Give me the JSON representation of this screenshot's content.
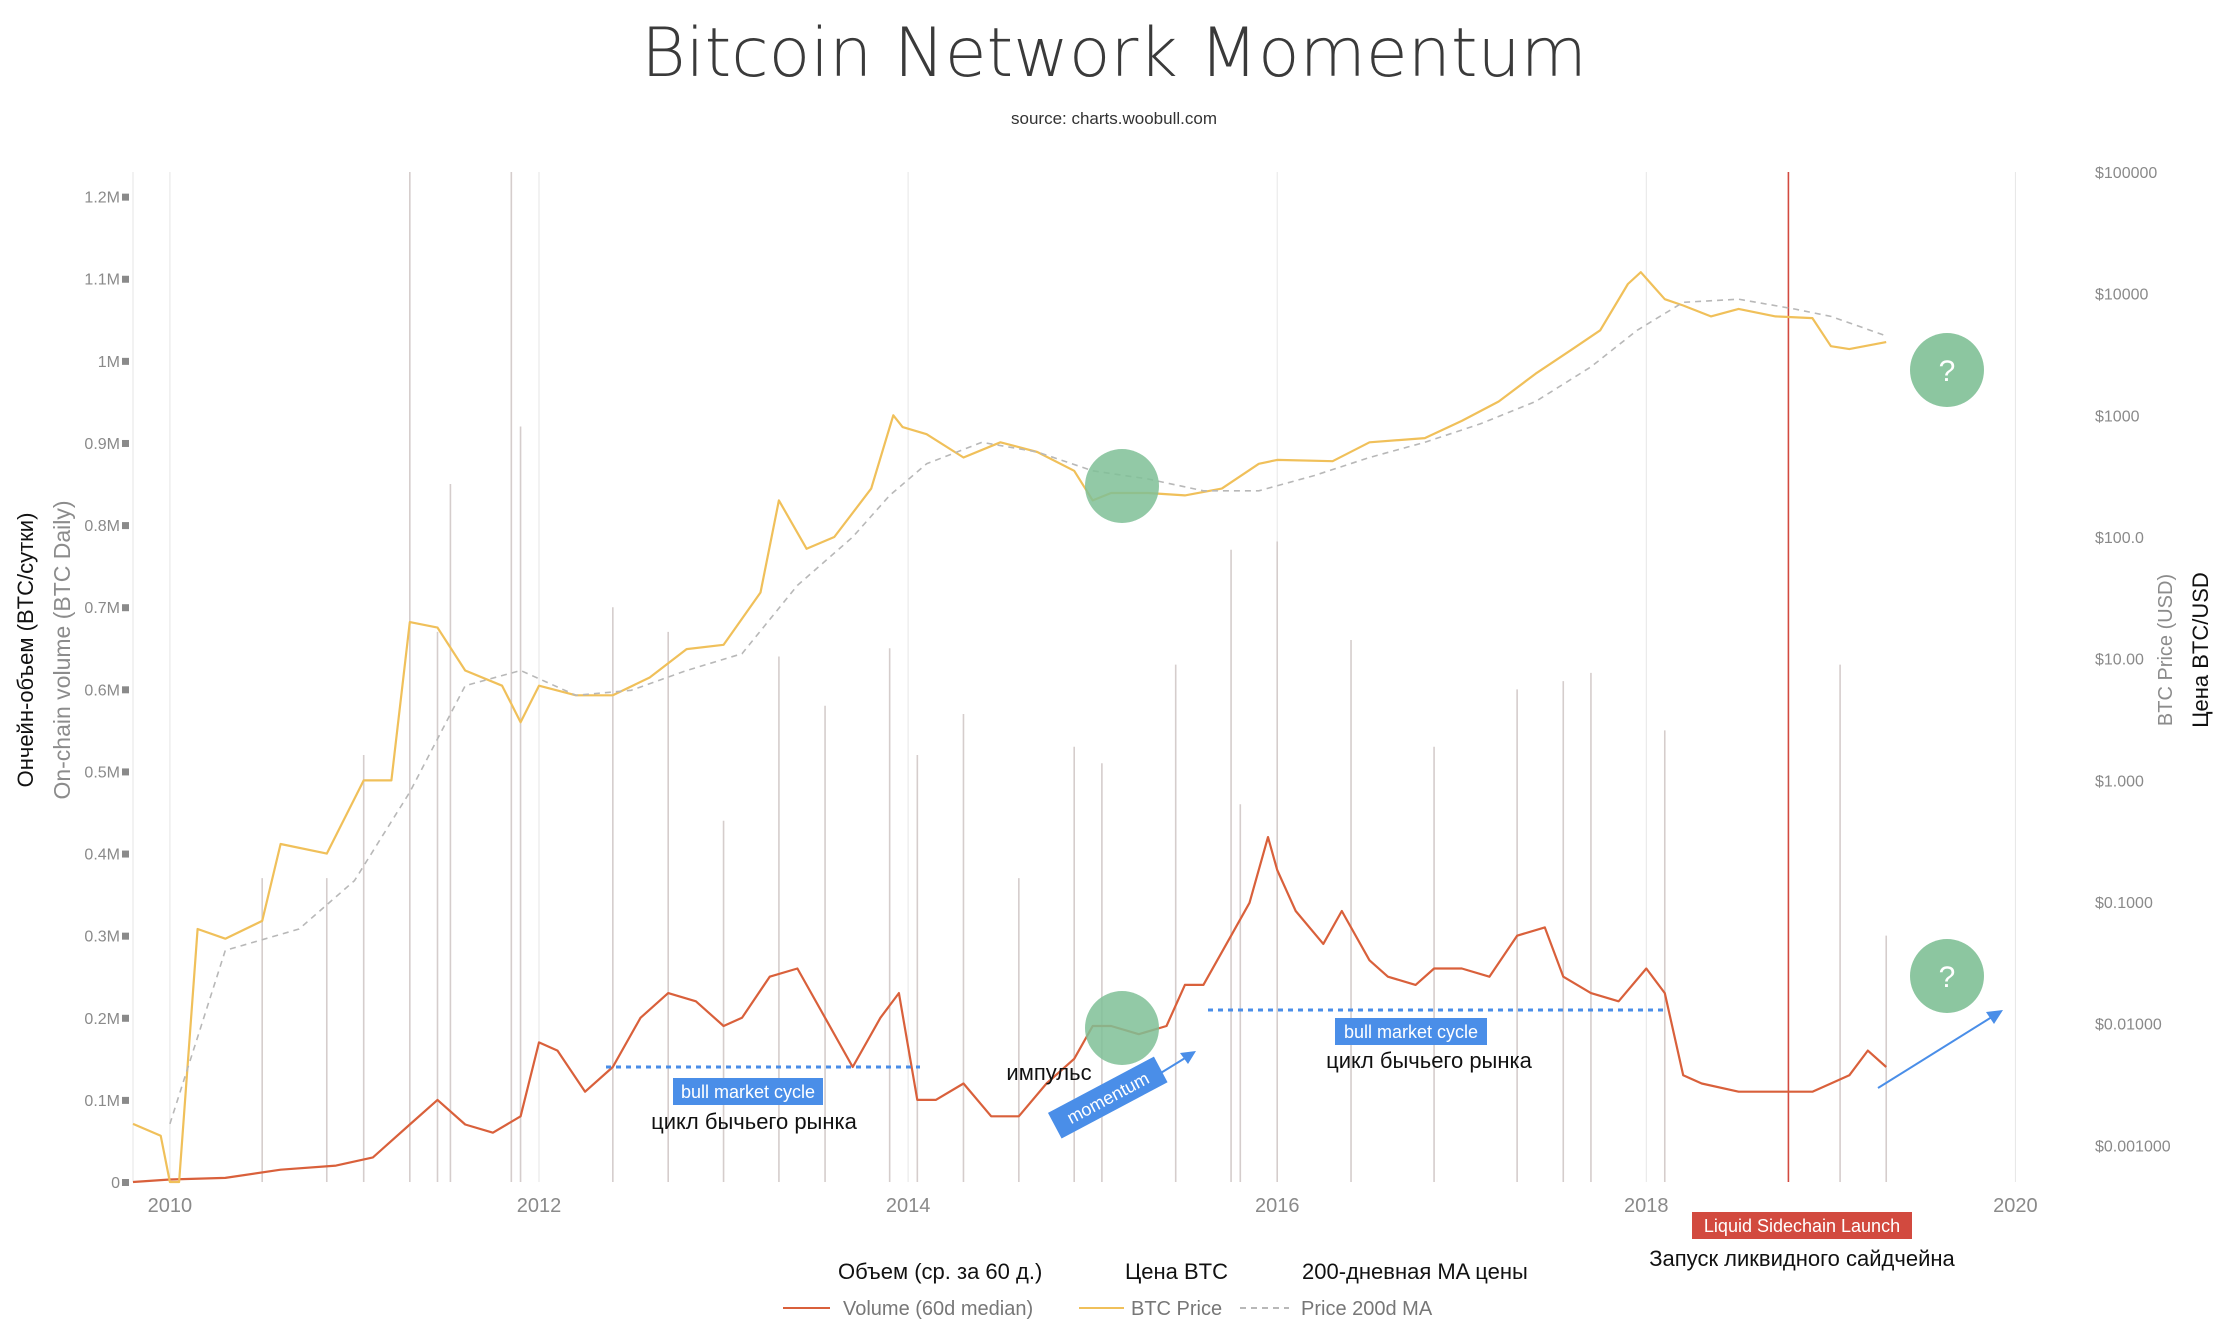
{
  "chart_data": {
    "type": "line",
    "title": "Bitcoin Network Momentum",
    "subtitle": "source: charts.woobull.com",
    "y_left": {
      "title_ru": "Ончейн-объем (BTC/сутки)",
      "title_en": "On-chain volume (BTC Daily)",
      "ticks": [
        "1.2M",
        "1.1M",
        "1M",
        "0.9M",
        "0.8M",
        "0.7M",
        "0.6M",
        "0.5M",
        "0.4M",
        "0.3M",
        "0.2M",
        "0.1M",
        "0"
      ],
      "range": [
        0,
        1.23
      ]
    },
    "y_right": {
      "title_en": "BTC Price (USD)",
      "title_ru": "Цена BTC/USD",
      "ticks": [
        "$100000",
        "$10000",
        "$1000",
        "$100.0",
        "$10.00",
        "$1.000",
        "$0.1000",
        "$0.01000",
        "$0.001000"
      ],
      "scale": "log",
      "range": [
        0.0005,
        100000
      ]
    },
    "x_axis": {
      "ticks": [
        "2010",
        "2012",
        "2014",
        "2016",
        "2018",
        "2020"
      ],
      "range": [
        2009.8,
        2020.35
      ]
    },
    "series": [
      {
        "name": "Volume (60d median)",
        "color": "#d9603b",
        "x": [
          2009.8,
          2010.0,
          2010.3,
          2010.6,
          2010.9,
          2011.1,
          2011.3,
          2011.45,
          2011.6,
          2011.75,
          2011.9,
          2012.0,
          2012.1,
          2012.25,
          2012.4,
          2012.55,
          2012.7,
          2012.85,
          2013.0,
          2013.1,
          2013.25,
          2013.4,
          2013.55,
          2013.7,
          2013.85,
          2013.95,
          2014.05,
          2014.15,
          2014.3,
          2014.45,
          2014.6,
          2014.75,
          2014.9,
          2015.0,
          2015.1,
          2015.25,
          2015.4,
          2015.5,
          2015.6,
          2015.75,
          2015.85,
          2015.95,
          2016.0,
          2016.1,
          2016.25,
          2016.35,
          2016.5,
          2016.6,
          2016.75,
          2016.85,
          2017.0,
          2017.15,
          2017.3,
          2017.45,
          2017.55,
          2017.7,
          2017.85,
          2018.0,
          2018.1,
          2018.2,
          2018.3,
          2018.5,
          2018.7,
          2018.8,
          2018.9,
          2019.0,
          2019.1,
          2019.2,
          2019.3
        ],
        "values": [
          0.0,
          0.003,
          0.005,
          0.015,
          0.02,
          0.03,
          0.07,
          0.1,
          0.07,
          0.06,
          0.08,
          0.17,
          0.16,
          0.11,
          0.14,
          0.2,
          0.23,
          0.22,
          0.19,
          0.2,
          0.25,
          0.26,
          0.2,
          0.14,
          0.2,
          0.23,
          0.1,
          0.1,
          0.12,
          0.08,
          0.08,
          0.12,
          0.15,
          0.19,
          0.19,
          0.18,
          0.19,
          0.24,
          0.24,
          0.3,
          0.34,
          0.42,
          0.38,
          0.33,
          0.29,
          0.33,
          0.27,
          0.25,
          0.24,
          0.26,
          0.26,
          0.25,
          0.3,
          0.31,
          0.25,
          0.23,
          0.22,
          0.26,
          0.23,
          0.13,
          0.12,
          0.11,
          0.11,
          0.11,
          0.11,
          0.12,
          0.13,
          0.16,
          0.14
        ]
      },
      {
        "name": "BTC Price",
        "color": "#f0c05a",
        "x": [
          2009.8,
          2009.95,
          2010.0,
          2010.05,
          2010.15,
          2010.3,
          2010.5,
          2010.6,
          2010.85,
          2011.05,
          2011.2,
          2011.3,
          2011.45,
          2011.6,
          2011.8,
          2011.9,
          2012.0,
          2012.2,
          2012.4,
          2012.6,
          2012.8,
          2013.0,
          2013.2,
          2013.3,
          2013.45,
          2013.6,
          2013.8,
          2013.92,
          2013.97,
          2014.1,
          2014.3,
          2014.5,
          2014.7,
          2014.9,
          2015.0,
          2015.1,
          2015.3,
          2015.5,
          2015.7,
          2015.9,
          2016.0,
          2016.3,
          2016.5,
          2016.8,
          2017.0,
          2017.2,
          2017.4,
          2017.6,
          2017.75,
          2017.9,
          2017.97,
          2018.1,
          2018.2,
          2018.35,
          2018.5,
          2018.7,
          2018.9,
          2019.0,
          2019.1,
          2019.3
        ],
        "values": [
          0.0015,
          0.0012,
          0.0005,
          0.0005,
          0.06,
          0.05,
          0.07,
          0.3,
          0.25,
          1.0,
          1.0,
          20,
          18,
          8.0,
          6.0,
          3.0,
          6.0,
          5.0,
          5.0,
          7.0,
          12,
          13,
          35,
          200,
          80,
          100,
          250,
          1000,
          800,
          700,
          450,
          600,
          500,
          350,
          200,
          230,
          230,
          220,
          250,
          400,
          430,
          420,
          600,
          650,
          900,
          1300,
          2200,
          3500,
          5000,
          12000,
          15000,
          9000,
          8000,
          6500,
          7500,
          6500,
          6300,
          3700,
          3500,
          4000
        ]
      },
      {
        "name": "Price 200d MA",
        "color": "#b8b8b8",
        "x": [
          2010.0,
          2010.3,
          2010.7,
          2011.0,
          2011.3,
          2011.6,
          2011.9,
          2012.2,
          2012.5,
          2012.8,
          2013.1,
          2013.4,
          2013.7,
          2013.9,
          2014.1,
          2014.4,
          2014.7,
          2015.0,
          2015.3,
          2015.6,
          2015.9,
          2016.2,
          2016.5,
          2016.8,
          2017.1,
          2017.4,
          2017.7,
          2017.95,
          2018.2,
          2018.5,
          2018.8,
          2019.0,
          2019.3
        ],
        "values": [
          0.0015,
          0.04,
          0.06,
          0.15,
          0.8,
          6.0,
          8.0,
          5.0,
          5.5,
          8.0,
          11,
          40,
          100,
          220,
          400,
          600,
          500,
          350,
          300,
          240,
          240,
          320,
          450,
          600,
          850,
          1300,
          2500,
          5000,
          8500,
          9000,
          7500,
          6500,
          4500
        ]
      }
    ],
    "volume_spikes": {
      "color": "#d5cdcc",
      "x": [
        2010.5,
        2010.85,
        2011.05,
        2011.3,
        2011.45,
        2011.52,
        2011.85,
        2011.9,
        2012.4,
        2012.7,
        2013.0,
        2013.3,
        2013.55,
        2013.9,
        2014.05,
        2014.3,
        2014.6,
        2014.9,
        2015.05,
        2015.45,
        2015.75,
        2015.8,
        2016.0,
        2016.4,
        2016.85,
        2017.3,
        2017.55,
        2017.7,
        2018.1,
        2019.05,
        2019.3
      ],
      "values": [
        0.37,
        0.37,
        0.52,
        1.23,
        0.67,
        0.85,
        1.23,
        0.92,
        0.7,
        0.67,
        0.44,
        0.64,
        0.58,
        0.65,
        0.52,
        0.57,
        0.37,
        0.53,
        0.51,
        0.63,
        0.77,
        0.46,
        0.78,
        0.66,
        0.53,
        0.6,
        0.61,
        0.62,
        0.55,
        0.63,
        0.3
      ]
    },
    "legend": {
      "position": "bottom",
      "items_en": [
        "Volume (60d median)",
        "BTC Price",
        "Price 200d MA"
      ],
      "items_ru": [
        "Объем (ср. за 60 д.)",
        "Цена BTC",
        "200-дневная MA цены"
      ]
    },
    "annotations": {
      "bull1_badge": "bull market cycle",
      "bull1_ru": "цикл бычьего рынка",
      "bull2_badge": "bull market cycle",
      "bull2_ru": "цикл бычьего рынка",
      "momentum_badge": "momentum",
      "momentum_ru": "импульс",
      "question_top": "?",
      "question_bottom": "?",
      "sidechain_badge": "Liquid Sidechain Launch",
      "sidechain_ru": "Запуск ликвидного сайдчейна",
      "sidechain_x": 2018.77
    },
    "colors": {
      "green_marker": "#7fc096",
      "blue_annotation": "#4a8ee8",
      "red_annotation": "#d24a3f"
    },
    "grid": "vertical"
  }
}
